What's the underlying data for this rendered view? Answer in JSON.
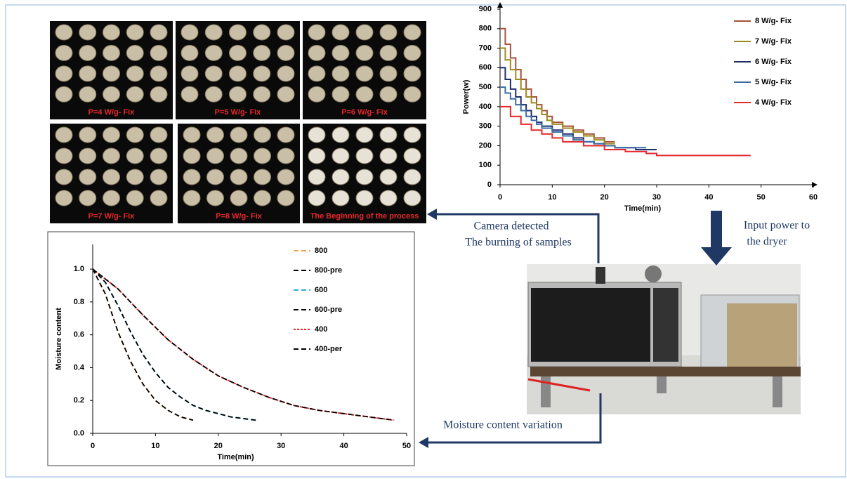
{
  "photos": [
    "P=4 W/g- Fix",
    "P=5 W/g- Fix",
    "P=6 W/g- Fix",
    "P=7 W/g- Fix",
    "P=8 W/g- Fix",
    "The Beginning of the process"
  ],
  "annotations": {
    "camera": [
      "Camera detected",
      "The burning of samples"
    ],
    "input": [
      "Input power to",
      "the dryer"
    ],
    "moisture": "Moisture content variation"
  },
  "chart_data": [
    {
      "type": "line",
      "step": true,
      "x_label": "Time(min)",
      "y_label": "Power(w)",
      "xlim": [
        0,
        60
      ],
      "xticks": [
        0,
        10,
        20,
        30,
        40,
        50,
        60
      ],
      "ylim": [
        0,
        900
      ],
      "yticks": [
        0,
        100,
        200,
        300,
        400,
        500,
        600,
        700,
        800,
        900
      ],
      "series": [
        {
          "name": "8 W/g- Fix",
          "color": "#a5503a",
          "x": [
            0,
            1,
            2,
            3,
            4,
            5,
            6,
            7,
            8,
            9,
            10,
            12,
            14,
            16,
            18,
            20,
            22
          ],
          "values": [
            800,
            720,
            650,
            590,
            540,
            490,
            450,
            410,
            380,
            350,
            320,
            300,
            280,
            260,
            240,
            220,
            220
          ]
        },
        {
          "name": "7 W/g- Fix",
          "color": "#9c8a1c",
          "x": [
            0,
            1,
            2,
            3,
            4,
            5,
            6,
            7,
            8,
            9,
            10,
            12,
            14,
            16,
            18,
            20,
            22
          ],
          "values": [
            700,
            640,
            590,
            540,
            490,
            450,
            420,
            390,
            360,
            330,
            310,
            290,
            270,
            250,
            230,
            210,
            210
          ]
        },
        {
          "name": "6 W/g- Fix",
          "color": "#1f2d6b",
          "x": [
            0,
            1,
            2,
            3,
            4,
            5,
            6,
            7,
            8,
            10,
            12,
            14,
            16,
            18,
            20,
            22,
            24,
            26,
            28,
            30
          ],
          "values": [
            600,
            540,
            490,
            450,
            410,
            380,
            350,
            320,
            300,
            280,
            260,
            240,
            220,
            210,
            200,
            190,
            190,
            180,
            180,
            180
          ]
        },
        {
          "name": "5 W/g- Fix",
          "color": "#3a6ca3",
          "x": [
            0,
            1,
            2,
            3,
            4,
            5,
            6,
            7,
            8,
            10,
            12,
            14,
            16,
            18,
            20,
            22,
            24,
            26,
            28
          ],
          "values": [
            500,
            470,
            440,
            410,
            380,
            350,
            330,
            310,
            290,
            270,
            250,
            230,
            220,
            210,
            200,
            190,
            190,
            190,
            190
          ]
        },
        {
          "name": "4 W/g- Fix",
          "color": "#e8262a",
          "x": [
            0,
            2,
            4,
            6,
            8,
            10,
            12,
            16,
            20,
            24,
            28,
            30,
            48
          ],
          "values": [
            400,
            350,
            310,
            280,
            260,
            240,
            220,
            200,
            180,
            170,
            160,
            150,
            150
          ]
        }
      ]
    },
    {
      "type": "line",
      "x_label": "Time(min)",
      "y_label": "Moisture content",
      "xlim": [
        0,
        50
      ],
      "xticks": [
        0,
        10,
        20,
        30,
        40,
        50
      ],
      "ylim": [
        0,
        1.15
      ],
      "yticks": [
        {
          "value": 0,
          "label": "0.0"
        },
        0.2,
        0.4,
        0.6,
        0.8,
        {
          "value": 1,
          "label": "1.0"
        }
      ],
      "series": [
        {
          "name": "800",
          "color": "#f0a050",
          "dash": "dashed",
          "x": [
            0,
            2,
            4,
            6,
            8,
            10,
            12,
            14,
            16
          ],
          "values": [
            1.0,
            0.85,
            0.62,
            0.44,
            0.3,
            0.2,
            0.14,
            0.1,
            0.08
          ]
        },
        {
          "name": "800-pre",
          "color": "#000000",
          "dash": "dashed",
          "x": [
            0,
            2,
            4,
            6,
            8,
            10,
            12,
            14,
            16
          ],
          "values": [
            1.0,
            0.85,
            0.62,
            0.44,
            0.3,
            0.2,
            0.14,
            0.1,
            0.08
          ]
        },
        {
          "name": "600",
          "color": "#31b0d6",
          "dash": "dashed",
          "x": [
            0,
            2,
            4,
            6,
            8,
            10,
            12,
            14,
            16,
            18,
            20,
            22,
            24,
            26
          ],
          "values": [
            1.0,
            0.92,
            0.78,
            0.62,
            0.48,
            0.37,
            0.28,
            0.22,
            0.17,
            0.14,
            0.12,
            0.1,
            0.09,
            0.08
          ]
        },
        {
          "name": "600-pre",
          "color": "#000000",
          "dash": "dashed",
          "x": [
            0,
            2,
            4,
            6,
            8,
            10,
            12,
            14,
            16,
            18,
            20,
            22,
            24,
            26
          ],
          "values": [
            1.0,
            0.92,
            0.78,
            0.62,
            0.48,
            0.37,
            0.28,
            0.22,
            0.17,
            0.14,
            0.12,
            0.1,
            0.09,
            0.08
          ]
        },
        {
          "name": "400",
          "color": "#e8262a",
          "dash": "dotted",
          "x": [
            0,
            4,
            8,
            12,
            16,
            20,
            24,
            28,
            32,
            36,
            40,
            44,
            48
          ],
          "values": [
            1.0,
            0.88,
            0.72,
            0.57,
            0.45,
            0.35,
            0.28,
            0.22,
            0.17,
            0.14,
            0.12,
            0.1,
            0.08
          ]
        },
        {
          "name": "400-per",
          "color": "#000000",
          "dash": "dashed",
          "x": [
            0,
            4,
            8,
            12,
            16,
            20,
            24,
            28,
            32,
            36,
            40,
            44,
            48
          ],
          "values": [
            1.0,
            0.88,
            0.72,
            0.57,
            0.45,
            0.35,
            0.28,
            0.22,
            0.17,
            0.14,
            0.12,
            0.1,
            0.08
          ]
        }
      ]
    }
  ]
}
